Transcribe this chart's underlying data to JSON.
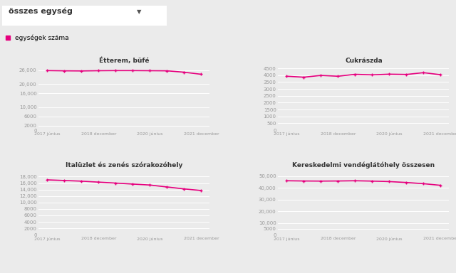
{
  "line_color": "#e6007e",
  "background_color": "#ebebeb",
  "legend_label": "egységek száma",
  "dropdown_text": "összes egység",
  "charts": [
    {
      "title": "Étterem, büfé",
      "y_values": [
        25800,
        25700,
        25650,
        25750,
        25800,
        25800,
        25750,
        25700,
        25100,
        24200
      ],
      "ylim": [
        0,
        28000
      ],
      "yticks": [
        0,
        2000,
        6000,
        10000,
        16000,
        20000,
        26000
      ],
      "ytick_labels": [
        "0",
        "2000",
        "6000",
        "10,000",
        "16,000",
        "20,000",
        "26,000"
      ]
    },
    {
      "title": "Cukrászda",
      "y_values": [
        3920,
        3850,
        3980,
        3920,
        4060,
        4020,
        4070,
        4050,
        4180,
        4030
      ],
      "ylim": [
        0,
        4700
      ],
      "yticks": [
        0,
        500,
        1000,
        1500,
        2000,
        2500,
        3000,
        3500,
        4000,
        4500
      ],
      "ytick_labels": [
        "0",
        "500",
        "1000",
        "1500",
        "2000",
        "2500",
        "3000",
        "3500",
        "4000",
        "4500"
      ]
    },
    {
      "title": "Italüzlet és zenés szórakozóhely",
      "y_values": [
        17000,
        16800,
        16600,
        16300,
        16000,
        15700,
        15400,
        14800,
        14200,
        13700
      ],
      "ylim": [
        0,
        20000
      ],
      "yticks": [
        0,
        2000,
        4000,
        6000,
        8000,
        10000,
        12000,
        14000,
        16000,
        18000
      ],
      "ytick_labels": [
        "0",
        "2000",
        "4000",
        "6000",
        "8000",
        "10,000",
        "12,000",
        "14,000",
        "16,000",
        "18,000"
      ]
    },
    {
      "title": "Kereskedelmi vendéglátóhely összesen",
      "y_values": [
        46000,
        45800,
        45700,
        45800,
        46000,
        45700,
        45300,
        44500,
        43500,
        42100
      ],
      "ylim": [
        0,
        55000
      ],
      "yticks": [
        0,
        5000,
        10000,
        20000,
        30000,
        40000,
        50000
      ],
      "ytick_labels": [
        "0",
        "5000",
        "10,000",
        "20,000",
        "30,000",
        "40,000",
        "50,000"
      ]
    }
  ],
  "x_tick_positions": [
    0,
    3,
    6,
    9
  ],
  "x_tick_labels": [
    "2017 június",
    "2018 december",
    "2020 június",
    "2021 december"
  ]
}
